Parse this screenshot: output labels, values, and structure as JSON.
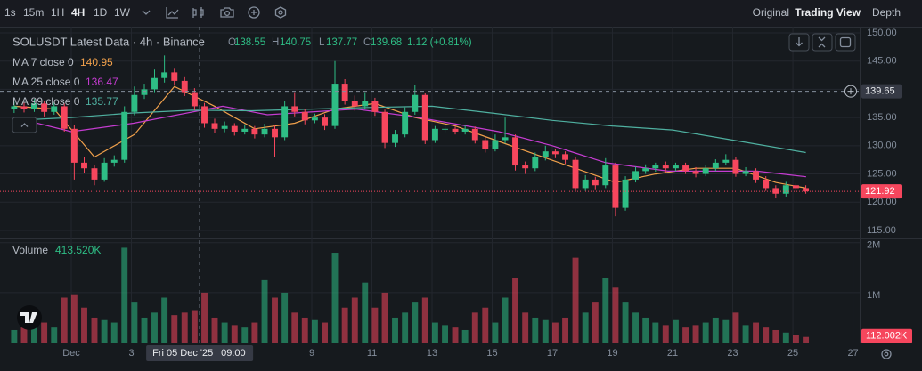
{
  "toolbar": {
    "intervals": [
      "1s",
      "15m",
      "1H",
      "4H",
      "1D",
      "1W"
    ],
    "views": [
      "Original",
      "Trading View",
      "Depth"
    ]
  },
  "chart_data": {
    "type": "candlestick",
    "title": "SOLUSDT Latest Data · 4h · Binance",
    "ohlc_legend": {
      "open_label": "O",
      "open": 138.55,
      "high_label": "H",
      "high": 140.75,
      "low_label": "L",
      "low": 137.77,
      "close_label": "C",
      "close": 139.68,
      "change": "1.12 (+0.81%)"
    },
    "up_color": "#2ebd85",
    "down_color": "#f6465d",
    "x": [
      -0.9,
      -0.57,
      -0.23,
      0.1,
      0.43,
      0.77,
      1.1,
      1.43,
      1.77,
      2.1,
      2.43,
      2.77,
      3.1,
      3.43,
      3.77,
      4.1,
      4.43,
      4.77,
      5.1,
      5.43,
      5.77,
      6.1,
      6.43,
      6.77,
      7.1,
      7.43,
      7.77,
      8.1,
      8.43,
      8.77,
      9.1,
      9.43,
      9.77,
      10.1,
      10.43,
      10.77,
      11.1,
      11.43,
      11.77,
      12.1,
      12.43,
      12.77,
      13.1,
      13.43,
      13.77,
      14.1,
      14.43,
      14.77,
      15.1,
      15.43,
      15.77,
      16.1,
      16.43,
      16.77,
      17.1,
      17.43,
      17.77,
      18.1,
      18.43,
      18.77,
      19.1,
      19.43,
      19.77,
      20.1,
      20.43,
      20.77,
      21.1,
      21.43,
      21.77,
      22.1,
      22.43,
      22.77,
      23.1,
      23.43,
      23.77,
      24.1,
      24.43,
      24.77,
      25.1,
      25.43
    ],
    "open": [
      136.5,
      137,
      136.5,
      137.5,
      136,
      137,
      133,
      127,
      126,
      124,
      127,
      127.5,
      136,
      139,
      140,
      142,
      143,
      141.5,
      139.5,
      137,
      134,
      133,
      133.5,
      132.5,
      133,
      132,
      133,
      131.5,
      137,
      136,
      134.5,
      135,
      133.5,
      141,
      138,
      137,
      138,
      136,
      130.5,
      132,
      136,
      139,
      131,
      133,
      133,
      132.5,
      133,
      131,
      129.5,
      131,
      131.5,
      126.5,
      126,
      128,
      129,
      128.5,
      127.5,
      122.5,
      124,
      123,
      126.5,
      119,
      124,
      125.5,
      126,
      126.5,
      126,
      126.5,
      125.5,
      125,
      126,
      127,
      127.5,
      125,
      125.5,
      124,
      122.5,
      121.5,
      123,
      122.5
    ],
    "high": [
      137.8,
      137.6,
      138.3,
      138,
      137.7,
      137.5,
      133.6,
      128,
      126.5,
      127.8,
      128.3,
      137,
      140.5,
      141,
      143.5,
      146,
      143.8,
      142.3,
      140.2,
      137.6,
      134.8,
      134.3,
      134,
      133.8,
      133.5,
      133.9,
      133.6,
      138,
      139.5,
      136.5,
      135.7,
      135.6,
      145,
      141.8,
      138.9,
      139.5,
      138.5,
      136.4,
      132.8,
      136.8,
      140.7,
      139.3,
      133.5,
      133.6,
      133.4,
      133.7,
      133.4,
      131.5,
      132,
      135,
      132,
      127.2,
      128.8,
      130,
      129.5,
      129,
      128,
      124.8,
      124.5,
      127.8,
      127,
      124.6,
      126.3,
      126.7,
      127,
      127.2,
      127,
      127,
      126.2,
      126.6,
      127.6,
      128.5,
      128,
      126.2,
      126,
      124.6,
      123,
      123.6,
      123.4,
      123
    ],
    "low": [
      135.8,
      135.9,
      136,
      135.2,
      135.5,
      132.5,
      124,
      125.2,
      123,
      123.6,
      126.3,
      127,
      135.4,
      138.3,
      139.5,
      141.2,
      140.8,
      138.8,
      136.3,
      133.2,
      132.2,
      132.4,
      131.8,
      132,
      131.3,
      131.5,
      128,
      131,
      135.2,
      133.8,
      134,
      132.8,
      133,
      137.3,
      136.2,
      136.5,
      135.3,
      129.6,
      129.8,
      131.5,
      135.5,
      130.3,
      130.5,
      132.4,
      132,
      132,
      130.4,
      128.8,
      129,
      130.4,
      125.6,
      125,
      125.5,
      127.4,
      127.8,
      126.8,
      121.8,
      122,
      122.3,
      122.5,
      117.5,
      118.5,
      123.5,
      125,
      125.4,
      125.3,
      125.5,
      125,
      124.4,
      124.6,
      125.5,
      126.5,
      124.5,
      124.6,
      123.4,
      122,
      120.8,
      121,
      122,
      121.5
    ],
    "close": [
      137,
      136.5,
      137.5,
      136,
      137,
      133,
      127,
      126,
      124,
      127,
      127.5,
      136,
      139,
      140,
      142,
      143,
      141.5,
      139.5,
      137,
      134,
      133,
      133.5,
      132.5,
      133,
      132,
      133,
      131.5,
      137,
      136,
      134.5,
      135,
      133.5,
      141,
      138,
      137,
      138,
      136,
      130.5,
      132,
      136,
      139,
      131,
      133,
      133,
      132.5,
      133,
      131,
      129.5,
      131,
      131.5,
      126.5,
      126,
      128,
      129,
      128.5,
      127.5,
      122.5,
      124,
      123,
      126.5,
      119,
      124,
      125.5,
      126,
      126.5,
      126,
      126.5,
      125.5,
      125,
      126,
      127,
      127.5,
      125,
      125.5,
      124,
      122.5,
      121.5,
      123,
      122.5,
      121.92
    ],
    "volume_name": "Volume",
    "volume_legend": "413.520K",
    "volume": [
      250000,
      300000,
      350000,
      400000,
      300000,
      900000,
      950000,
      700000,
      500000,
      450000,
      400000,
      1900000,
      800000,
      500000,
      600000,
      900000,
      550000,
      600000,
      650000,
      1000000,
      500000,
      400000,
      350000,
      300000,
      400000,
      1250000,
      900000,
      1000000,
      600000,
      500000,
      450000,
      400000,
      1800000,
      700000,
      900000,
      1200000,
      700000,
      1000000,
      500000,
      600000,
      800000,
      900000,
      400000,
      350000,
      300000,
      250000,
      600000,
      700000,
      400000,
      900000,
      1300000,
      600000,
      500000,
      450000,
      400000,
      500000,
      1700000,
      600000,
      800000,
      1300000,
      1100000,
      800000,
      600000,
      500000,
      400000,
      350000,
      450000,
      300000,
      350000,
      400000,
      500000,
      450000,
      600000,
      350000,
      400000,
      300000,
      250000,
      200000,
      150000,
      112002
    ],
    "last_volume": {
      "value": 112002,
      "label": "112.002K"
    },
    "moving_averages": [
      {
        "name": "MA 7 close 0",
        "legend_value": 140.95,
        "color": "#f0a04b",
        "x": [
          -0.9,
          0.43,
          1.77,
          3.1,
          4.43,
          5.77,
          7.1,
          8.43,
          9.77,
          11.1,
          12.43,
          13.77,
          15.1,
          16.43,
          17.77,
          19.1,
          20.43,
          21.77,
          23.1,
          24.43,
          25.43
        ],
        "values": [
          137,
          136.5,
          128,
          132,
          140.5,
          137,
          133,
          134,
          136.5,
          137.5,
          135,
          133.5,
          131,
          128.5,
          126,
          123.5,
          125,
          126,
          126,
          123.5,
          122.5
        ]
      },
      {
        "name": "MA 25 close 0",
        "legend_value": 136.47,
        "color": "#c53cd1",
        "x": [
          -0.9,
          1,
          3.07,
          6.04,
          7.52,
          10.48,
          12.56,
          15.22,
          17,
          18.78,
          20.85,
          23.81,
          25.44
        ],
        "values": [
          135,
          132.5,
          134,
          137,
          135.5,
          136.5,
          135,
          132.5,
          130,
          127,
          125.5,
          125.5,
          124.5
        ]
      },
      {
        "name": "MA 99 close 0",
        "legend_value": 135.77,
        "color": "#4fb0a0",
        "x": [
          -0.9,
          1,
          3,
          5,
          7,
          9,
          11,
          13,
          15,
          17,
          19,
          21,
          23,
          25.43
        ],
        "values": [
          134.5,
          135,
          135.8,
          136.3,
          136.2,
          136.5,
          136.8,
          137,
          135.8,
          134.5,
          133.5,
          132.8,
          131,
          128.8
        ]
      }
    ],
    "xlim": [
      -1.37,
      27.22
    ],
    "xticks": [
      {
        "value": 1,
        "label": "Dec"
      },
      3,
      9,
      11,
      13,
      15,
      17,
      19,
      21,
      23,
      25,
      27
    ],
    "ylim": [
      113.58,
      151.1
    ],
    "yticks": [
      {
        "value": 115,
        "label": "115.00"
      },
      {
        "value": 120,
        "label": "120.00"
      },
      {
        "value": 125,
        "label": "125.00"
      },
      {
        "value": 130,
        "label": "130.00"
      },
      {
        "value": 135,
        "label": "135.00"
      },
      {
        "value": 140,
        "label": "140.00"
      },
      {
        "value": 145,
        "label": "145.00"
      },
      {
        "value": 150,
        "label": "150.00"
      }
    ],
    "y2lim": [
      0,
      2050000
    ],
    "y2ticks": [
      {
        "value": 1000000,
        "label": "1M"
      },
      {
        "value": 2000000,
        "label": "2M"
      }
    ],
    "grid": true,
    "crosshair": {
      "x": 5.27,
      "date_label": "Fri 05 Dec '25",
      "time_label": "09:00",
      "price": 139.65
    },
    "last_price": 121.92
  }
}
